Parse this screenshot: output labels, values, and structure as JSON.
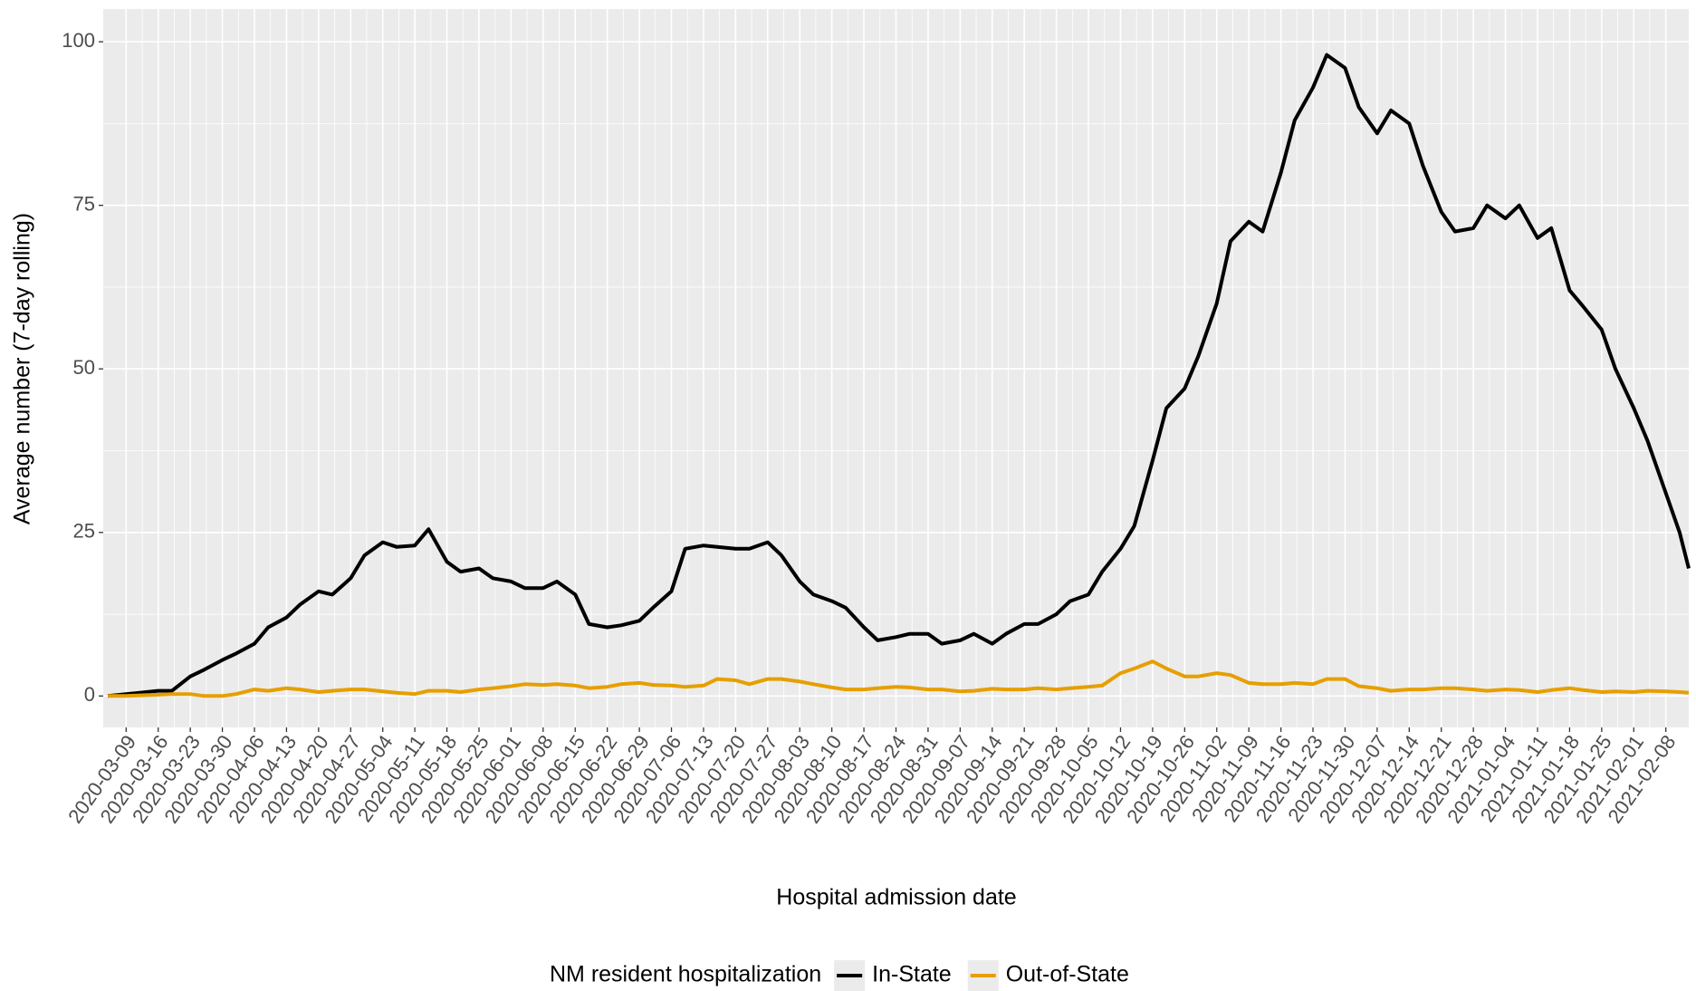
{
  "chart_data": {
    "type": "line",
    "x_label": "Hospital admission date",
    "y_label": "Average number (7-day rolling)",
    "legend_title": "NM resident hospitalization",
    "legend": "bottom",
    "grid": true,
    "x": [
      "2020-03-05",
      "2020-03-09",
      "2020-03-12",
      "2020-03-16",
      "2020-03-19",
      "2020-03-23",
      "2020-03-26",
      "2020-03-30",
      "2020-04-02",
      "2020-04-06",
      "2020-04-09",
      "2020-04-13",
      "2020-04-16",
      "2020-04-20",
      "2020-04-23",
      "2020-04-27",
      "2020-04-30",
      "2020-05-04",
      "2020-05-07",
      "2020-05-11",
      "2020-05-14",
      "2020-05-18",
      "2020-05-21",
      "2020-05-25",
      "2020-05-28",
      "2020-06-01",
      "2020-06-04",
      "2020-06-08",
      "2020-06-11",
      "2020-06-15",
      "2020-06-18",
      "2020-06-22",
      "2020-06-25",
      "2020-06-29",
      "2020-07-02",
      "2020-07-06",
      "2020-07-09",
      "2020-07-13",
      "2020-07-16",
      "2020-07-20",
      "2020-07-23",
      "2020-07-27",
      "2020-07-30",
      "2020-08-03",
      "2020-08-06",
      "2020-08-10",
      "2020-08-13",
      "2020-08-17",
      "2020-08-20",
      "2020-08-24",
      "2020-08-27",
      "2020-08-31",
      "2020-09-03",
      "2020-09-07",
      "2020-09-10",
      "2020-09-14",
      "2020-09-17",
      "2020-09-21",
      "2020-09-24",
      "2020-09-28",
      "2020-10-01",
      "2020-10-05",
      "2020-10-08",
      "2020-10-12",
      "2020-10-15",
      "2020-10-19",
      "2020-10-22",
      "2020-10-26",
      "2020-10-29",
      "2020-11-02",
      "2020-11-05",
      "2020-11-09",
      "2020-11-12",
      "2020-11-16",
      "2020-11-19",
      "2020-11-23",
      "2020-11-26",
      "2020-11-30",
      "2020-12-03",
      "2020-12-07",
      "2020-12-10",
      "2020-12-14",
      "2020-12-17",
      "2020-12-21",
      "2020-12-24",
      "2020-12-28",
      "2020-12-31",
      "2021-01-04",
      "2021-01-07",
      "2021-01-11",
      "2021-01-14",
      "2021-01-18",
      "2021-01-21",
      "2021-01-25",
      "2021-01-28",
      "2021-02-01",
      "2021-02-04",
      "2021-02-08",
      "2021-02-11",
      "2021-02-13"
    ],
    "series": [
      {
        "name": "In-State",
        "color": "#000000",
        "values": [
          0,
          0.3,
          0.5,
          0.8,
          0.8,
          3,
          4,
          5.5,
          6.5,
          8,
          10.5,
          12,
          14,
          16,
          15.5,
          18,
          21.5,
          23.5,
          22.8,
          23,
          25.5,
          20.5,
          19,
          19.5,
          18,
          17.5,
          16.5,
          16.5,
          17.5,
          15.5,
          11,
          10.5,
          10.8,
          11.5,
          13.5,
          16,
          22.5,
          23,
          22.8,
          22.5,
          22.5,
          23.5,
          21.5,
          17.5,
          15.5,
          14.5,
          13.5,
          10.5,
          8.5,
          9,
          9.5,
          9.5,
          8,
          8.5,
          9.5,
          8,
          9.5,
          11,
          11,
          12.5,
          14.5,
          15.5,
          19,
          22.5,
          26,
          36,
          44,
          47,
          52,
          60,
          69.5,
          72.5,
          71,
          80,
          88,
          93,
          98,
          96,
          90,
          86,
          89.5,
          87.5,
          81,
          74,
          71,
          71.5,
          75,
          73,
          75,
          70,
          71.5,
          62,
          59.5,
          56,
          50,
          44,
          39,
          31,
          25,
          19.5
        ]
      },
      {
        "name": "Out-of-State",
        "color": "#e69f00",
        "values": [
          0,
          0,
          0.1,
          0.2,
          0.3,
          0.3,
          0,
          0,
          0.3,
          1,
          0.8,
          1.2,
          1,
          0.6,
          0.8,
          1,
          1,
          0.7,
          0.5,
          0.3,
          0.8,
          0.8,
          0.6,
          1,
          1.2,
          1.5,
          1.8,
          1.7,
          1.8,
          1.6,
          1.2,
          1.4,
          1.8,
          2,
          1.7,
          1.6,
          1.4,
          1.6,
          2.6,
          2.4,
          1.8,
          2.6,
          2.6,
          2.2,
          1.8,
          1.3,
          1.0,
          1.0,
          1.2,
          1.4,
          1.3,
          1.0,
          1.0,
          0.7,
          0.8,
          1.1,
          1.0,
          1.0,
          1.2,
          1.0,
          1.2,
          1.4,
          1.6,
          3.5,
          4.2,
          5.3,
          4.2,
          3,
          3,
          3.5,
          3.2,
          2,
          1.8,
          1.8,
          2,
          1.8,
          2.6,
          2.6,
          1.5,
          1.2,
          0.8,
          1.0,
          1.0,
          1.2,
          1.2,
          1.0,
          0.8,
          1.0,
          0.9,
          0.6,
          0.9,
          1.2,
          0.9,
          0.6,
          0.7,
          0.6,
          0.8,
          0.7,
          0.6,
          0.5
        ]
      }
    ],
    "xlim": [
      "2020-03-04",
      "2021-02-13"
    ],
    "xticks": [
      "2020-03-09",
      "2020-03-16",
      "2020-03-23",
      "2020-03-30",
      "2020-04-06",
      "2020-04-13",
      "2020-04-20",
      "2020-04-27",
      "2020-05-04",
      "2020-05-11",
      "2020-05-18",
      "2020-05-25",
      "2020-06-01",
      "2020-06-08",
      "2020-06-15",
      "2020-06-22",
      "2020-06-29",
      "2020-07-06",
      "2020-07-13",
      "2020-07-20",
      "2020-07-27",
      "2020-08-03",
      "2020-08-10",
      "2020-08-17",
      "2020-08-24",
      "2020-08-31",
      "2020-09-07",
      "2020-09-14",
      "2020-09-21",
      "2020-09-28",
      "2020-10-05",
      "2020-10-12",
      "2020-10-19",
      "2020-10-26",
      "2020-11-02",
      "2020-11-09",
      "2020-11-16",
      "2020-11-23",
      "2020-11-30",
      "2020-12-07",
      "2020-12-14",
      "2020-12-21",
      "2020-12-28",
      "2021-01-04",
      "2021-01-11",
      "2021-01-18",
      "2021-01-25",
      "2021-02-01",
      "2021-02-08"
    ],
    "ylim": [
      -4.8,
      105
    ],
    "yticks": [
      0,
      25,
      50,
      75,
      100
    ]
  }
}
